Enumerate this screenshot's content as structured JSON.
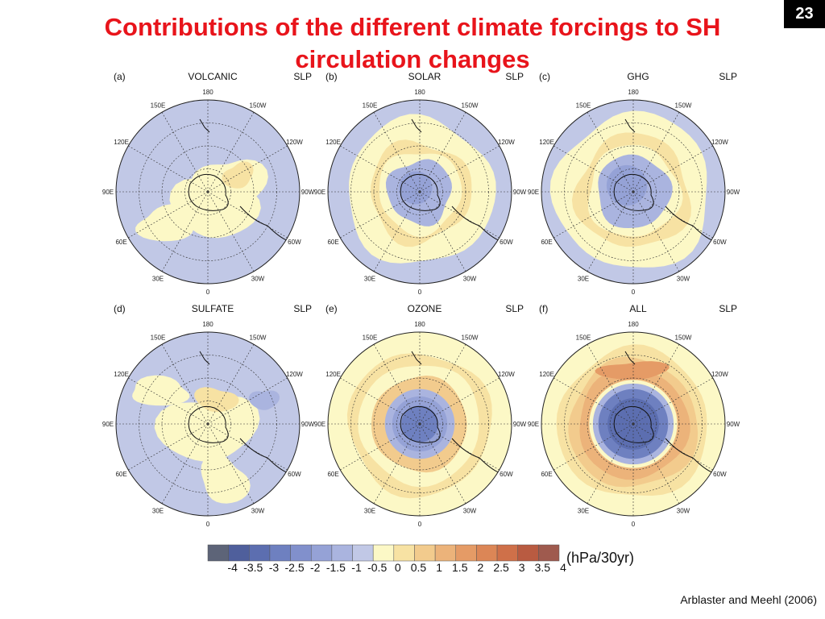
{
  "slide_number": "23",
  "title": "Contributions of the different climate forcings to SH circulation changes",
  "panels": [
    {
      "label": "(a)",
      "name": "VOLCANIC",
      "var": "SLP",
      "pattern": "volcanic"
    },
    {
      "label": "(b)",
      "name": "SOLAR",
      "var": "SLP",
      "pattern": "solar"
    },
    {
      "label": "(c)",
      "name": "GHG",
      "var": "SLP",
      "pattern": "ghg"
    },
    {
      "label": "(d)",
      "name": "SULFATE",
      "var": "SLP",
      "pattern": "sulfate"
    },
    {
      "label": "(e)",
      "name": "OZONE",
      "var": "SLP",
      "pattern": "ozone"
    },
    {
      "label": "(f)",
      "name": "ALL",
      "var": "SLP",
      "pattern": "all"
    }
  ],
  "lon_labels": [
    "180",
    "150W",
    "120W",
    "90W",
    "60W",
    "30W",
    "0",
    "30E",
    "60E",
    "90E",
    "120E",
    "150E"
  ],
  "colorbar": {
    "ticks": [
      "-4",
      "-3.5",
      "-3",
      "-2.5",
      "-2",
      "-1.5",
      "-1",
      "-0.5",
      "0",
      "0.5",
      "1",
      "1.5",
      "2",
      "2.5",
      "3",
      "3.5",
      "4"
    ],
    "colors": [
      "#5d6478",
      "#4f5f9c",
      "#5c6eb0",
      "#6e80c0",
      "#8190cc",
      "#95a2d6",
      "#aab4df",
      "#c1c8e6",
      "#fcf8c6",
      "#f7e2a3",
      "#f2cb8d",
      "#ecb37a",
      "#e59b66",
      "#dc8656",
      "#cf7049",
      "#b95b41",
      "#9f5a4e"
    ],
    "units": "(hPa/30yr)"
  },
  "citation": "Arblaster and Meehl (2006)"
}
